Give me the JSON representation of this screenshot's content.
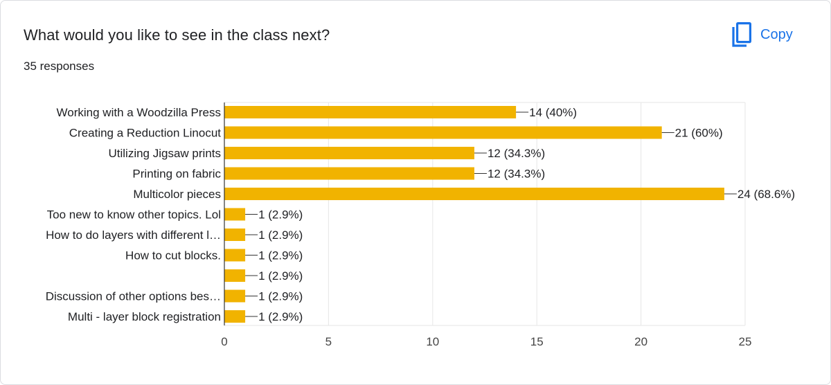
{
  "header": {
    "question": "What would you like to see in the class next?",
    "responses": "35 responses",
    "copy_label": "Copy",
    "copy_icon": "copy-icon"
  },
  "colors": {
    "bar": "#f1b300",
    "accent": "#1a73e8",
    "grid": "#e6e6e6",
    "axis": "#333333"
  },
  "chart_data": {
    "type": "bar",
    "orientation": "horizontal",
    "title": "What would you like to see in the class next?",
    "categories": [
      "Working with a Woodzilla Press",
      "Creating a Reduction Linocut",
      "Utilizing Jigsaw prints",
      "Printing on fabric",
      "Multicolor pieces",
      "Too new to know other topics. Lol",
      "How to do layers with different l…",
      "How to cut blocks.",
      "",
      "Discussion of other options bes…",
      "Multi - layer block registration"
    ],
    "values": [
      14,
      21,
      12,
      12,
      24,
      1,
      1,
      1,
      1,
      1,
      1
    ],
    "value_labels": [
      "14 (40%)",
      "21 (60%)",
      "12 (34.3%)",
      "12 (34.3%)",
      "24 (68.6%)",
      "1 (2.9%)",
      "1 (2.9%)",
      "1 (2.9%)",
      "1 (2.9%)",
      "1 (2.9%)",
      "1 (2.9%)"
    ],
    "xlim": [
      0,
      25
    ],
    "xticks": [
      0,
      5,
      10,
      15,
      20,
      25
    ],
    "grid": true,
    "legend": "none"
  }
}
